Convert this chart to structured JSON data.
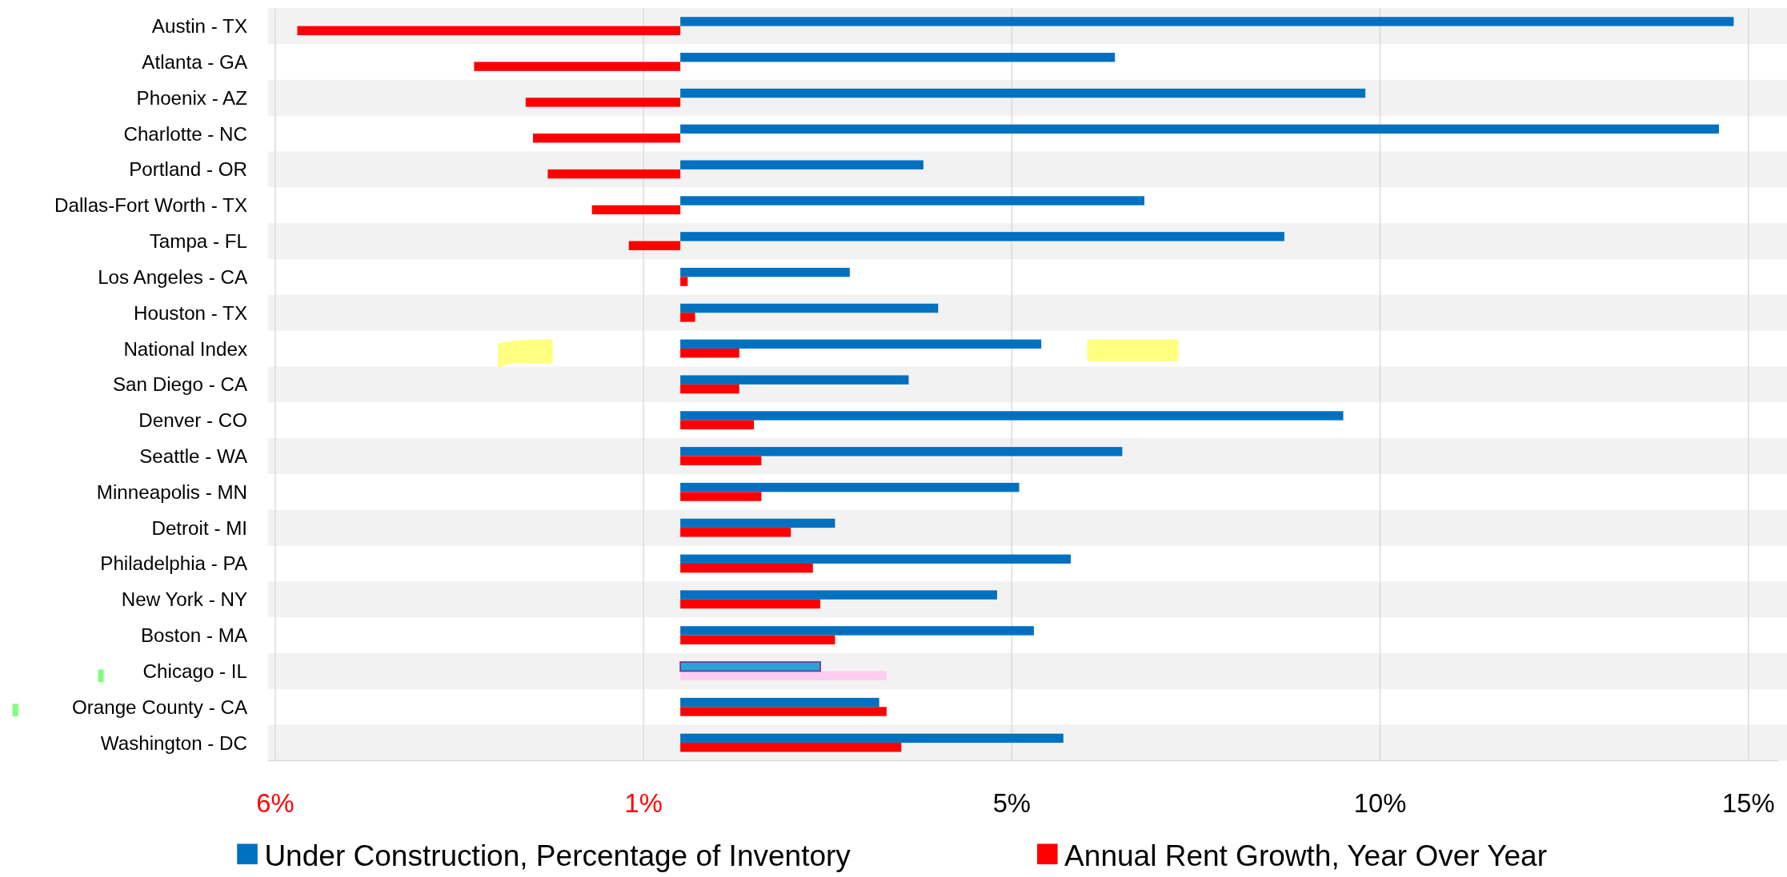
{
  "chart_data": {
    "type": "bar",
    "orientation": "horizontal",
    "categories": [
      "Austin - TX",
      "Atlanta - GA",
      "Phoenix - AZ",
      "Charlotte - NC",
      "Portland - OR",
      "Dallas-Fort Worth - TX",
      "Tampa - FL",
      "Los Angeles - CA",
      "Houston - TX",
      "National Index",
      "San Diego - CA",
      "Denver - CO",
      "Seattle - WA",
      "Minneapolis - MN",
      "Detroit - MI",
      "Philadelphia - PA",
      "New York - NY",
      "Boston - MA",
      "Chicago - IL",
      "Orange County - CA",
      "Washington - DC"
    ],
    "series": [
      {
        "name": "Under Construction, Percentage of Inventory",
        "color": "#0070c0",
        "colors": [
          "#0070c0",
          "#0070c0",
          "#0070c0",
          "#0070c0",
          "#0070c0",
          "#0070c0",
          "#0070c0",
          "#0070c0",
          "#0070c0",
          "#0070c0",
          "#0070c0",
          "#0070c0",
          "#0070c0",
          "#0070c0",
          "#0070c0",
          "#0070c0",
          "#0070c0",
          "#0070c0",
          "#29a3d6",
          "#0070c0",
          "#0070c0"
        ],
        "values": [
          14.3,
          5.9,
          9.3,
          14.1,
          3.3,
          6.3,
          8.2,
          2.3,
          3.5,
          4.9,
          3.1,
          9.0,
          6.0,
          4.6,
          2.1,
          5.3,
          4.3,
          4.8,
          1.9,
          2.7,
          5.2
        ]
      },
      {
        "name": "Annual Rent Growth, Year Over Year",
        "color": "#ff0000",
        "colors": [
          "#ff0000",
          "#ff0000",
          "#ff0000",
          "#ff0000",
          "#ff0000",
          "#ff0000",
          "#ff0000",
          "#ff0000",
          "#ff0000",
          "#ff0000",
          "#ff0000",
          "#ff0000",
          "#ff0000",
          "#ff0000",
          "#ff0000",
          "#ff0000",
          "#ff0000",
          "#ff0000",
          "#ffccf2",
          "#ff0000",
          "#ff0000"
        ],
        "values": [
          -5.2,
          -2.8,
          -2.1,
          -2.0,
          -1.8,
          -1.2,
          -0.7,
          0.1,
          0.2,
          0.8,
          0.8,
          1.0,
          1.1,
          1.1,
          1.5,
          1.8,
          1.9,
          2.1,
          2.8,
          2.8,
          3.0
        ]
      }
    ],
    "xlim": [
      -5.6,
      14.9
    ],
    "xticks": [
      {
        "value": -5.5,
        "label": "6%"
      },
      {
        "value": -0.5,
        "label": "1%"
      },
      {
        "value": 4.5,
        "label": "5%"
      },
      {
        "value": 9.5,
        "label": "10%"
      },
      {
        "value": 14.5,
        "label": "15%"
      }
    ],
    "grid": "x",
    "legend": "bottom"
  }
}
